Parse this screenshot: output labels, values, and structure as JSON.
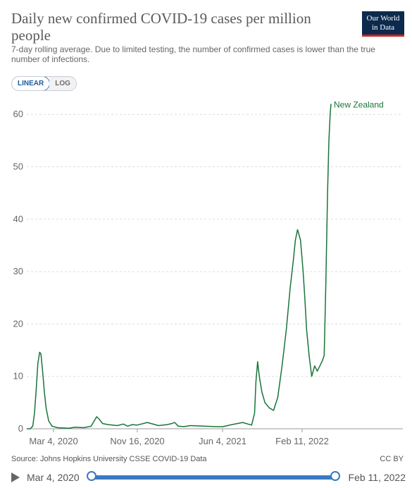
{
  "header": {
    "title": "Daily new confirmed COVID-19 cases per million people",
    "subtitle": "7-day rolling average. Due to limited testing, the number of confirmed cases is lower than the true number of infections.",
    "logo_line1": "Our World",
    "logo_line2": "in Data"
  },
  "controls": {
    "linear_label": "LINEAR",
    "log_label": "LOG",
    "selected": "LINEAR"
  },
  "footer": {
    "source_prefix": "Source: ",
    "source_name": "Johns Hopkins University CSSE COVID-19 Data",
    "license": "CC BY"
  },
  "timeline": {
    "start_label": "Mar 4, 2020",
    "end_label": "Feb 11, 2022"
  },
  "colors": {
    "series": "#18753a",
    "grid": "#dddddd",
    "accent": "#3b79c2"
  },
  "chart_data": {
    "type": "line",
    "title": "Daily new confirmed COVID-19 cases per million people",
    "xlabel": "",
    "ylabel": "",
    "x_tick_labels": [
      "Mar 4, 2020",
      "Nov 16, 2020",
      "Jun 4, 2021",
      "Feb 11, 2022"
    ],
    "y_ticks": [
      0,
      10,
      20,
      30,
      40,
      50,
      60
    ],
    "ylim": [
      0,
      62
    ],
    "xlim": [
      "2020-03-04",
      "2022-02-11"
    ],
    "grid": "horizontal dashed",
    "series": [
      {
        "name": "New Zealand",
        "color": "#18753a",
        "x": [
          "2020-03-04",
          "2020-03-12",
          "2020-03-18",
          "2020-03-22",
          "2020-03-26",
          "2020-03-30",
          "2020-04-03",
          "2020-04-06",
          "2020-04-10",
          "2020-04-14",
          "2020-04-18",
          "2020-04-24",
          "2020-05-02",
          "2020-05-15",
          "2020-06-10",
          "2020-06-25",
          "2020-07-15",
          "2020-08-01",
          "2020-08-14",
          "2020-08-20",
          "2020-08-28",
          "2020-09-10",
          "2020-10-01",
          "2020-10-15",
          "2020-10-25",
          "2020-11-05",
          "2020-11-16",
          "2020-12-10",
          "2021-01-05",
          "2021-01-25",
          "2021-02-05",
          "2021-02-12",
          "2021-02-20",
          "2021-03-05",
          "2021-03-20",
          "2021-04-20",
          "2021-05-20",
          "2021-06-04",
          "2021-06-25",
          "2021-07-20",
          "2021-08-10",
          "2021-08-17",
          "2021-08-20",
          "2021-08-24",
          "2021-08-28",
          "2021-09-03",
          "2021-09-10",
          "2021-09-20",
          "2021-09-30",
          "2021-10-10",
          "2021-10-20",
          "2021-10-30",
          "2021-11-08",
          "2021-11-15",
          "2021-11-20",
          "2021-11-25",
          "2021-12-02",
          "2021-12-08",
          "2021-12-12",
          "2021-12-16",
          "2021-12-22",
          "2021-12-28",
          "2022-01-04",
          "2022-01-10",
          "2022-01-16",
          "2022-01-22",
          "2022-01-26",
          "2022-01-30",
          "2022-02-03",
          "2022-02-06",
          "2022-02-09",
          "2022-02-11"
        ],
        "values": [
          0,
          0,
          0.5,
          3,
          7.5,
          12.5,
          14.6,
          14.3,
          11,
          7,
          4,
          1.5,
          0.5,
          0.2,
          0.1,
          0.3,
          0.2,
          0.5,
          2.3,
          1.8,
          1,
          0.8,
          0.6,
          0.9,
          0.5,
          0.8,
          0.7,
          1.2,
          0.6,
          0.8,
          1.0,
          1.2,
          0.5,
          0.4,
          0.6,
          0.5,
          0.4,
          0.4,
          0.8,
          1.2,
          0.7,
          3,
          9,
          12.8,
          10,
          7,
          5,
          4,
          3.5,
          6,
          12,
          19,
          27,
          32,
          36,
          38,
          36,
          30,
          25,
          19,
          14,
          10,
          12,
          11,
          12,
          13,
          14,
          28,
          45,
          55,
          60,
          62
        ]
      }
    ]
  }
}
